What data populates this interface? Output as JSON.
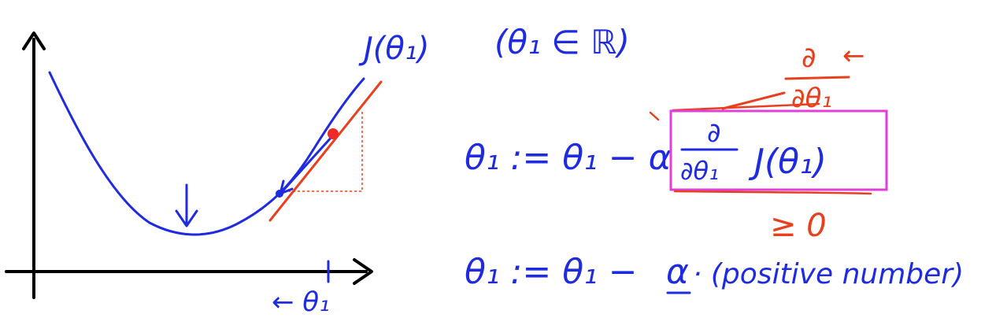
{
  "colors": {
    "ink_black": "#000000",
    "ink_blue": "#1f2be0",
    "ink_red": "#e8401f",
    "box_magenta": "#e03fd8",
    "dot_red": "#ee2a2a"
  },
  "graph": {
    "curve_label": "J(θ₁)",
    "x_axis_label": "← θ₁"
  },
  "notes": {
    "domain_note": "(θ₁ ∈ ℝ)",
    "update_rule": {
      "lhs": "θ₁ := θ₁ − α",
      "derivative_num": "∂",
      "derivative_den": "∂θ₁",
      "func": "J(θ₁)"
    },
    "annotation_derivative": {
      "num": "∂",
      "den": "∂θ₁",
      "arrow": "←"
    },
    "sign_note": "≥ 0",
    "positive_rule": {
      "lhs": "θ₁ := θ₁ −",
      "alpha": "α",
      "rest": "· (positive number)"
    }
  }
}
